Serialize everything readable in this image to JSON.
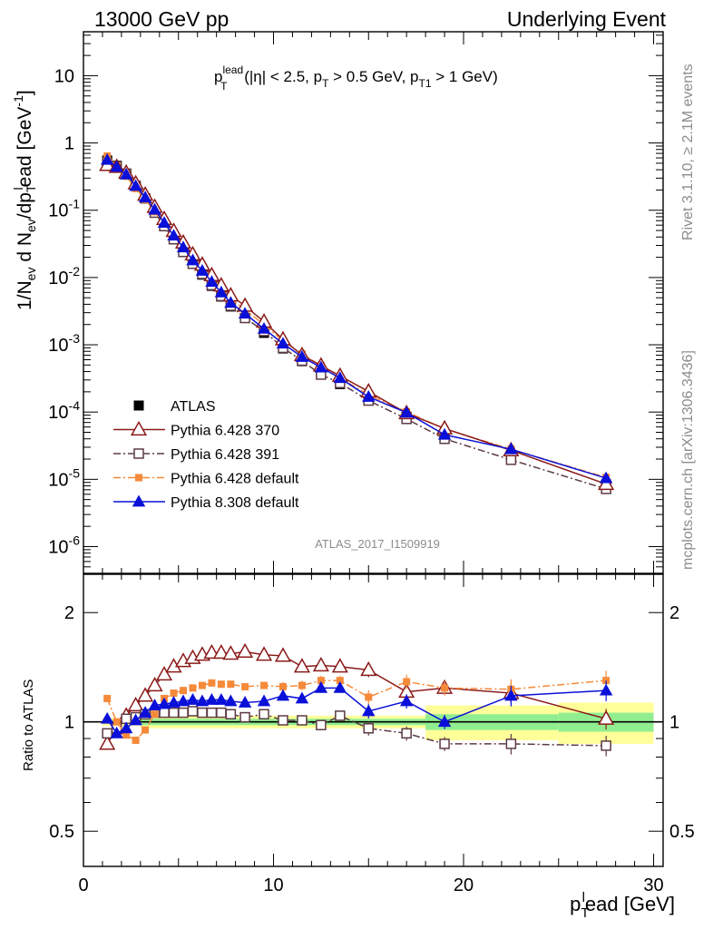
{
  "header": {
    "left": "13000 GeV pp",
    "right": "Underlying Event"
  },
  "side_text": {
    "rivet": "Rivet 3.1.10, ≥ 2.1M events",
    "mcplots": "mcplots.cern.ch [arXiv:1306.3436]"
  },
  "analysis_id": "ATLAS_2017_I1509919",
  "cut_text": {
    "p": "p",
    "sup": "lead",
    "sub": "T",
    "rest1": " (|η| < 2.5, p",
    "sub2": "T",
    "rest2": " > 0.5 GeV, p",
    "sub3": "T1",
    "rest3": " > 1 GeV)"
  },
  "ylabel_main": {
    "a": "1/N",
    "a_sub": "ev",
    "b": " d N",
    "b_sub": "ev",
    "c": "/dp",
    "c_sub": "T",
    "c_sup": "l",
    "d": "ead [GeV",
    "d_sup": "-1",
    "e": "]"
  },
  "ylabel_ratio": "Ratio to ATLAS",
  "xlabel": {
    "p": "p",
    "sub": "T",
    "sup": "l",
    "rest": "ead [GeV]"
  },
  "colors": {
    "atlas": "#000000",
    "p6_370": "#8b1a1a",
    "p6_391": "#5c3a44",
    "p6_default": "#f58a3a",
    "p8_default": "#0a10d8",
    "band_yellow": "#ffff99",
    "band_green": "#90ee90"
  },
  "chart_data": [
    {
      "type": "scatter",
      "title": "",
      "ylabel": "1/N_ev d N_ev/dp_T^lead [GeV^-1]",
      "xlabel": "p_T^lead [GeV]",
      "yscale": "log",
      "xlim": [
        0,
        30.5
      ],
      "ylim": [
        4e-07,
        45
      ],
      "x": [
        1.25,
        1.75,
        2.25,
        2.75,
        3.25,
        3.75,
        4.25,
        4.75,
        5.25,
        5.75,
        6.25,
        6.75,
        7.25,
        7.75,
        8.5,
        9.5,
        10.5,
        11.5,
        12.5,
        13.5,
        15,
        17,
        19,
        22.5,
        27.5
      ],
      "x_tick_labels": [
        "0",
        "10",
        "20",
        "30"
      ],
      "y_tick_labels": [
        "10^-6",
        "10^-5",
        "10^-4",
        "10^-3",
        "10^-2",
        "10^-1",
        "1",
        "10"
      ],
      "legend_position": "bottom-left",
      "series": [
        {
          "name": "ATLAS",
          "marker": "filled-square",
          "line": "none",
          "values": [
            0.55,
            0.46,
            0.35,
            0.23,
            0.15,
            0.092,
            0.058,
            0.037,
            0.024,
            0.016,
            0.011,
            0.0075,
            0.0052,
            0.0037,
            0.0025,
            0.0015,
            0.00088,
            0.00057,
            0.00037,
            0.00026,
            0.000155,
            8.5e-05,
            4.6e-05,
            2.3e-05,
            8.4e-06
          ]
        },
        {
          "name": "Pythia 6.428 370",
          "marker": "open-triangle",
          "line": "solid",
          "values": [
            0.47,
            0.44,
            0.36,
            0.25,
            0.17,
            0.112,
            0.074,
            0.049,
            0.033,
            0.022,
            0.0155,
            0.0108,
            0.0076,
            0.0054,
            0.0038,
            0.0022,
            0.0012,
            0.0007,
            0.00049,
            0.000345,
            0.000202,
            9.6e-05,
            5.7e-05,
            2.7e-05,
            8.5e-06
          ]
        },
        {
          "name": "Pythia 6.428 391",
          "marker": "open-square",
          "line": "dash-dot",
          "values": [
            0.51,
            0.45,
            0.35,
            0.23,
            0.15,
            0.092,
            0.058,
            0.037,
            0.024,
            0.016,
            0.0113,
            0.0077,
            0.0053,
            0.0038,
            0.0025,
            0.0016,
            0.0009,
            0.00058,
            0.00036,
            0.00027,
            0.000148,
            7.9e-05,
            4e-05,
            1.95e-05,
            7.2e-06
          ]
        },
        {
          "name": "Pythia 6.428 default",
          "marker": "filled-square",
          "line": "dash-dot",
          "values": [
            0.64,
            0.46,
            0.32,
            0.21,
            0.145,
            0.095,
            0.062,
            0.042,
            0.028,
            0.019,
            0.0137,
            0.0096,
            0.0068,
            0.0049,
            0.0033,
            0.002,
            0.00114,
            0.00073,
            0.00049,
            0.00032,
            0.000181,
            0.000101,
            5.6e-05,
            2.8e-05,
            1.07e-05
          ]
        },
        {
          "name": "Pythia 8.308 default",
          "marker": "filled-triangle",
          "line": "solid",
          "values": [
            0.56,
            0.44,
            0.34,
            0.23,
            0.155,
            0.102,
            0.065,
            0.042,
            0.028,
            0.018,
            0.0126,
            0.0086,
            0.006,
            0.0042,
            0.0029,
            0.00173,
            0.00104,
            0.00066,
            0.00046,
            0.00032,
            0.000168,
            9.8e-05,
            4.6e-05,
            2.8e-05,
            1.04e-05
          ]
        }
      ]
    },
    {
      "type": "scatter",
      "title": "",
      "ylabel": "Ratio to ATLAS",
      "xlabel": "p_T^lead [GeV]",
      "yscale": "log",
      "xlim": [
        0,
        30.5
      ],
      "ylim": [
        0.4,
        2.55
      ],
      "y_tick_labels": [
        "0.5",
        "1",
        "2"
      ],
      "x": [
        1.25,
        1.75,
        2.25,
        2.75,
        3.25,
        3.75,
        4.25,
        4.75,
        5.25,
        5.75,
        6.25,
        6.75,
        7.25,
        7.75,
        8.5,
        9.5,
        10.5,
        11.5,
        12.5,
        13.5,
        15,
        17,
        19,
        22.5,
        27.5
      ],
      "series": [
        {
          "name": "Pythia 6.428 370",
          "values": [
            0.87,
            0.96,
            1.04,
            1.11,
            1.18,
            1.26,
            1.35,
            1.42,
            1.47,
            1.5,
            1.53,
            1.55,
            1.55,
            1.54,
            1.56,
            1.53,
            1.52,
            1.42,
            1.43,
            1.42,
            1.39,
            1.21,
            1.24,
            1.2,
            1.02
          ]
        },
        {
          "name": "Pythia 6.428 391",
          "values": [
            0.93,
            0.96,
            1.02,
            1.03,
            1.05,
            1.06,
            1.06,
            1.06,
            1.06,
            1.07,
            1.06,
            1.06,
            1.06,
            1.05,
            1.03,
            1.05,
            1.01,
            1.01,
            0.98,
            1.04,
            0.96,
            0.93,
            0.87,
            0.87,
            0.86
          ]
        },
        {
          "name": "Pythia 6.428 default",
          "values": [
            1.16,
            1.0,
            0.92,
            0.89,
            0.95,
            1.05,
            1.16,
            1.2,
            1.22,
            1.24,
            1.26,
            1.28,
            1.27,
            1.27,
            1.25,
            1.26,
            1.25,
            1.26,
            1.3,
            1.3,
            1.17,
            1.29,
            1.24,
            1.23,
            1.3
          ]
        },
        {
          "name": "Pythia 8.308 default",
          "values": [
            1.02,
            0.93,
            0.96,
            1.01,
            1.06,
            1.11,
            1.12,
            1.13,
            1.14,
            1.15,
            1.14,
            1.15,
            1.15,
            1.14,
            1.13,
            1.14,
            1.18,
            1.16,
            1.24,
            1.24,
            1.07,
            1.14,
            1.0,
            1.18,
            1.22
          ]
        }
      ],
      "uncertainty_bands": {
        "x_edges": [
          1.0,
          3.0,
          18.0,
          20.0,
          25.0,
          30.0
        ],
        "green_half_width": [
          0.01,
          0.02,
          0.05,
          0.05,
          0.06
        ],
        "yellow_half_width": [
          0.025,
          0.04,
          0.11,
          0.11,
          0.13
        ]
      }
    }
  ]
}
